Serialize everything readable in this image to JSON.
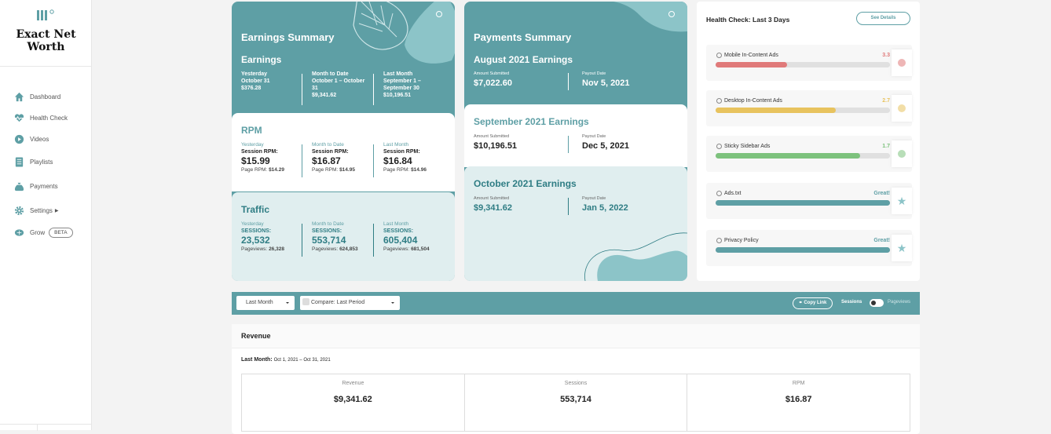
{
  "sidebar": {
    "site_name": "Exact Net Worth",
    "items": [
      {
        "label": "Dashboard",
        "icon": "home-icon"
      },
      {
        "label": "Health Check",
        "icon": "heartbeat-icon"
      },
      {
        "label": "Videos",
        "icon": "play-icon"
      },
      {
        "label": "Playlists",
        "icon": "list-icon"
      },
      {
        "label": "Payments",
        "icon": "money-bag-icon"
      },
      {
        "label": "Settings",
        "icon": "gear-icon"
      },
      {
        "label": "Grow",
        "icon": "brain-icon",
        "badge": "BETA"
      }
    ]
  },
  "earnings": {
    "title": "Earnings Summary",
    "section": "Earnings",
    "cols": [
      {
        "h1": "Yesterday",
        "h2": "October 31",
        "value": "$376.28"
      },
      {
        "h1": "Month to Date",
        "h2": "October 1 – October 31",
        "value": "$9,341.62"
      },
      {
        "h1": "Last Month",
        "h2": "September 1 – September 30",
        "value": "$10,196.51"
      }
    ]
  },
  "rpm": {
    "title": "RPM",
    "cols": [
      {
        "label": "Yesterday",
        "key": "Session RPM:",
        "value": "$15.99",
        "sub_label": "Page RPM:",
        "sub_value": "$14.29"
      },
      {
        "label": "Month to Date",
        "key": "Session RPM:",
        "value": "$16.87",
        "sub_label": "Page RPM:",
        "sub_value": "$14.95"
      },
      {
        "label": "Last Month",
        "key": "Session RPM:",
        "value": "$16.84",
        "sub_label": "Page RPM:",
        "sub_value": "$14.96"
      }
    ]
  },
  "traffic": {
    "title": "Traffic",
    "cols": [
      {
        "label": "Yesterday",
        "key": "SESSIONS:",
        "value": "23,532",
        "sub_label": "Pageviews:",
        "sub_value": "26,328"
      },
      {
        "label": "Month to Date",
        "key": "SESSIONS:",
        "value": "553,714",
        "sub_label": "Pageviews:",
        "sub_value": "624,853"
      },
      {
        "label": "Last Month",
        "key": "SESSIONS:",
        "value": "605,404",
        "sub_label": "Pageviews:",
        "sub_value": "681,504"
      }
    ]
  },
  "payments": {
    "title": "Payments Summary",
    "months": [
      {
        "title": "August 2021 Earnings",
        "amount_label": "Amount Submitted",
        "amount": "$7,022.60",
        "date_label": "Payout Date",
        "date": "Nov 5, 2021"
      },
      {
        "title": "September 2021 Earnings",
        "amount_label": "Amount Submitted",
        "amount": "$10,196.51",
        "date_label": "Payout Date",
        "date": "Dec 5, 2021"
      },
      {
        "title": "October 2021 Earnings",
        "amount_label": "Amount Submitted",
        "amount": "$9,341.62",
        "date_label": "Payout Date",
        "date": "Jan 5, 2022"
      }
    ]
  },
  "health": {
    "title": "Health Check: Last 3 Days",
    "see_details": "See Details",
    "items": [
      {
        "name": "Mobile In-Content Ads",
        "value": "3.3",
        "color": "#e07a7a",
        "level": 0.41,
        "status": "dot"
      },
      {
        "name": "Desktop In-Content Ads",
        "value": "2.7",
        "color": "#e8c35e",
        "level": 0.69,
        "status": "dot"
      },
      {
        "name": "Sticky Sidebar Ads",
        "value": "1.7",
        "color": "#7dc27d",
        "level": 0.83,
        "status": "dot"
      },
      {
        "name": "Ads.txt",
        "value": "Great!",
        "color": "#5e9fa5",
        "level": 1.0,
        "status": "star"
      },
      {
        "name": "Privacy Policy",
        "value": "Great!",
        "color": "#5e9fa5",
        "level": 1.0,
        "status": "star"
      }
    ]
  },
  "filters": {
    "period": "Last Month",
    "compare": "Compare: Last Period",
    "copy_link": "Copy Link",
    "toggle_left": "Sessions",
    "toggle_right": "Pageviews"
  },
  "revenue": {
    "title": "Revenue",
    "period_label": "Last Month:",
    "period_range": "Oct 1, 2021 – Oct 31, 2021",
    "stats": [
      {
        "label": "Revenue",
        "value": "$9,341.62"
      },
      {
        "label": "Sessions",
        "value": "553,714"
      },
      {
        "label": "RPM",
        "value": "$16.87"
      }
    ]
  }
}
